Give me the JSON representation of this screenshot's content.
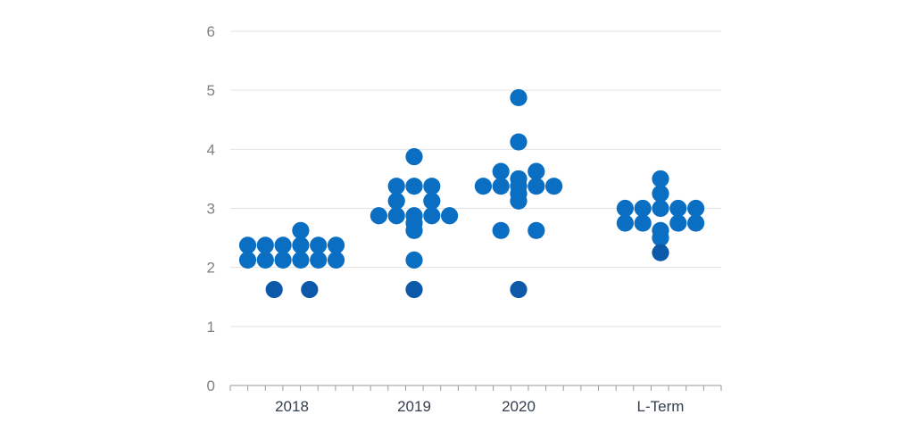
{
  "chart_data": {
    "type": "scatter",
    "title": "",
    "xlabel": "",
    "ylabel": "",
    "categories": [
      "2018",
      "2019",
      "2020",
      "L-Term"
    ],
    "y_ticks": [
      "0",
      "1",
      "2",
      "3",
      "4",
      "5",
      "6"
    ],
    "ylim": [
      0,
      6
    ],
    "grid": true,
    "legend": "none",
    "colors": {
      "dot": "#0a6fc2",
      "dot_dark": "#0b59a8",
      "grid": "#e3e3e3",
      "axis": "#9a9a9a"
    },
    "series": [
      {
        "values": [
          {
            "category": "2018",
            "offset": -2.5,
            "y": 2.375
          },
          {
            "category": "2018",
            "offset": -1.5,
            "y": 2.375
          },
          {
            "category": "2018",
            "offset": -0.5,
            "y": 2.375
          },
          {
            "category": "2018",
            "offset": 0.5,
            "y": 2.375
          },
          {
            "category": "2018",
            "offset": 1.5,
            "y": 2.375
          },
          {
            "category": "2018",
            "offset": 2.5,
            "y": 2.375
          },
          {
            "category": "2018",
            "offset": -2.5,
            "y": 2.125
          },
          {
            "category": "2018",
            "offset": -1.5,
            "y": 2.125
          },
          {
            "category": "2018",
            "offset": -0.5,
            "y": 2.125
          },
          {
            "category": "2018",
            "offset": 0.5,
            "y": 2.125
          },
          {
            "category": "2018",
            "offset": 1.5,
            "y": 2.125
          },
          {
            "category": "2018",
            "offset": 2.5,
            "y": 2.125
          },
          {
            "category": "2018",
            "offset": 0.5,
            "y": 2.625
          },
          {
            "category": "2018",
            "offset": -1.0,
            "y": 1.625,
            "dark": true
          },
          {
            "category": "2018",
            "offset": 1.0,
            "y": 1.625,
            "dark": true
          },
          {
            "category": "2019",
            "offset": 0,
            "y": 3.875
          },
          {
            "category": "2019",
            "offset": -1.0,
            "y": 3.375
          },
          {
            "category": "2019",
            "offset": 0,
            "y": 3.375
          },
          {
            "category": "2019",
            "offset": 1.0,
            "y": 3.375
          },
          {
            "category": "2019",
            "offset": -1.0,
            "y": 3.125
          },
          {
            "category": "2019",
            "offset": 1.0,
            "y": 3.125
          },
          {
            "category": "2019",
            "offset": -2.0,
            "y": 2.875
          },
          {
            "category": "2019",
            "offset": -1.0,
            "y": 2.875
          },
          {
            "category": "2019",
            "offset": 0,
            "y": 2.875
          },
          {
            "category": "2019",
            "offset": 1.0,
            "y": 2.875
          },
          {
            "category": "2019",
            "offset": 2.0,
            "y": 2.875
          },
          {
            "category": "2019",
            "offset": 0,
            "y": 2.75
          },
          {
            "category": "2019",
            "offset": 0,
            "y": 2.625
          },
          {
            "category": "2019",
            "offset": 0,
            "y": 2.125
          },
          {
            "category": "2019",
            "offset": 0,
            "y": 1.625,
            "dark": true
          },
          {
            "category": "2020",
            "offset": 0,
            "y": 4.875
          },
          {
            "category": "2020",
            "offset": 0,
            "y": 4.125
          },
          {
            "category": "2020",
            "offset": -1.0,
            "y": 3.625
          },
          {
            "category": "2020",
            "offset": 1.0,
            "y": 3.625
          },
          {
            "category": "2020",
            "offset": 0,
            "y": 3.5
          },
          {
            "category": "2020",
            "offset": -2.0,
            "y": 3.375
          },
          {
            "category": "2020",
            "offset": -1.0,
            "y": 3.375
          },
          {
            "category": "2020",
            "offset": 0,
            "y": 3.375
          },
          {
            "category": "2020",
            "offset": 1.0,
            "y": 3.375
          },
          {
            "category": "2020",
            "offset": 2.0,
            "y": 3.375
          },
          {
            "category": "2020",
            "offset": 0,
            "y": 3.25
          },
          {
            "category": "2020",
            "offset": 0,
            "y": 3.125
          },
          {
            "category": "2020",
            "offset": -1.0,
            "y": 2.625
          },
          {
            "category": "2020",
            "offset": 1.0,
            "y": 2.625
          },
          {
            "category": "2020",
            "offset": 0,
            "y": 1.625,
            "dark": true
          },
          {
            "category": "L-Term",
            "offset": 0,
            "y": 3.5
          },
          {
            "category": "L-Term",
            "offset": 0,
            "y": 3.25
          },
          {
            "category": "L-Term",
            "offset": -2.0,
            "y": 3.0
          },
          {
            "category": "L-Term",
            "offset": -1.0,
            "y": 3.0
          },
          {
            "category": "L-Term",
            "offset": 0,
            "y": 3.0
          },
          {
            "category": "L-Term",
            "offset": 1.0,
            "y": 3.0
          },
          {
            "category": "L-Term",
            "offset": 2.0,
            "y": 3.0
          },
          {
            "category": "L-Term",
            "offset": -2.0,
            "y": 2.75
          },
          {
            "category": "L-Term",
            "offset": -1.0,
            "y": 2.75
          },
          {
            "category": "L-Term",
            "offset": 1.0,
            "y": 2.75
          },
          {
            "category": "L-Term",
            "offset": 2.0,
            "y": 2.75
          },
          {
            "category": "L-Term",
            "offset": 0,
            "y": 2.625
          },
          {
            "category": "L-Term",
            "offset": 0,
            "y": 2.5
          },
          {
            "category": "L-Term",
            "offset": 0,
            "y": 2.25,
            "dark": true
          }
        ]
      }
    ]
  }
}
